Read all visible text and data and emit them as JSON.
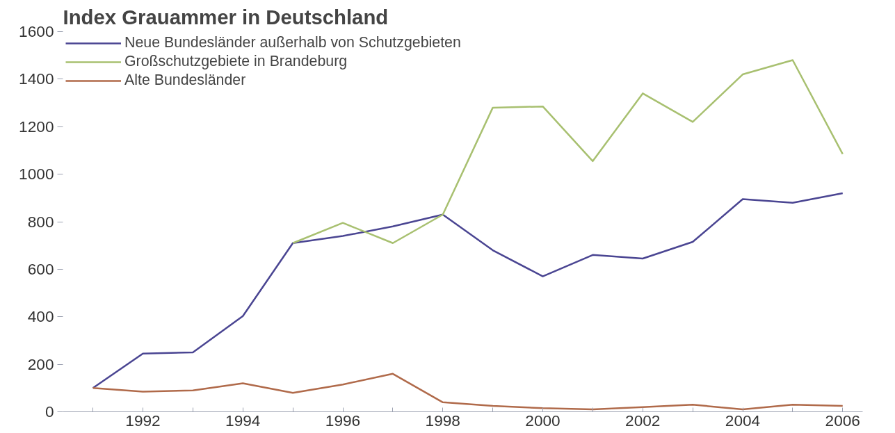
{
  "chart_data": {
    "type": "line",
    "title": "Index Grauammer in Deutschland",
    "x": [
      1991,
      1992,
      1993,
      1994,
      1995,
      1996,
      1997,
      1998,
      1999,
      2000,
      2001,
      2002,
      2003,
      2004,
      2005,
      2006
    ],
    "series": [
      {
        "name": "Neue Bundesländer außerhalb von Schutzgebieten",
        "color": "#4a4592",
        "values": [
          100,
          245,
          250,
          403,
          710,
          740,
          780,
          830,
          680,
          570,
          660,
          645,
          715,
          895,
          880,
          920
        ]
      },
      {
        "name": "Großschutzgebiete in Brandeburg",
        "color": "#a8c070",
        "values": [
          null,
          null,
          null,
          null,
          710,
          795,
          710,
          830,
          1280,
          1285,
          1055,
          1340,
          1220,
          1420,
          1480,
          1085
        ]
      },
      {
        "name": "Alte Bundesländer",
        "color": "#b06a4a",
        "values": [
          100,
          85,
          90,
          120,
          80,
          115,
          160,
          40,
          25,
          15,
          10,
          20,
          30,
          10,
          30,
          25
        ]
      }
    ],
    "xlim": [
      1990.4,
      2006.4
    ],
    "ylim": [
      0,
      1600
    ],
    "xticks": [
      {
        "value": 1991,
        "label": null
      },
      1992,
      {
        "value": 1993,
        "label": null
      },
      1994,
      {
        "value": 1995,
        "label": null
      },
      1996,
      {
        "value": 1997,
        "label": null
      },
      1998,
      {
        "value": 1999,
        "label": null
      },
      2000,
      {
        "value": 2001,
        "label": null
      },
      2002,
      {
        "value": 2003,
        "label": null
      },
      2004,
      {
        "value": 2005,
        "label": null
      },
      2006
    ],
    "yticks": [
      0,
      200,
      400,
      600,
      800,
      1000,
      1200,
      1400,
      1600
    ],
    "grid": false,
    "legend": "top left",
    "marker": "none",
    "line_style": "solid"
  }
}
